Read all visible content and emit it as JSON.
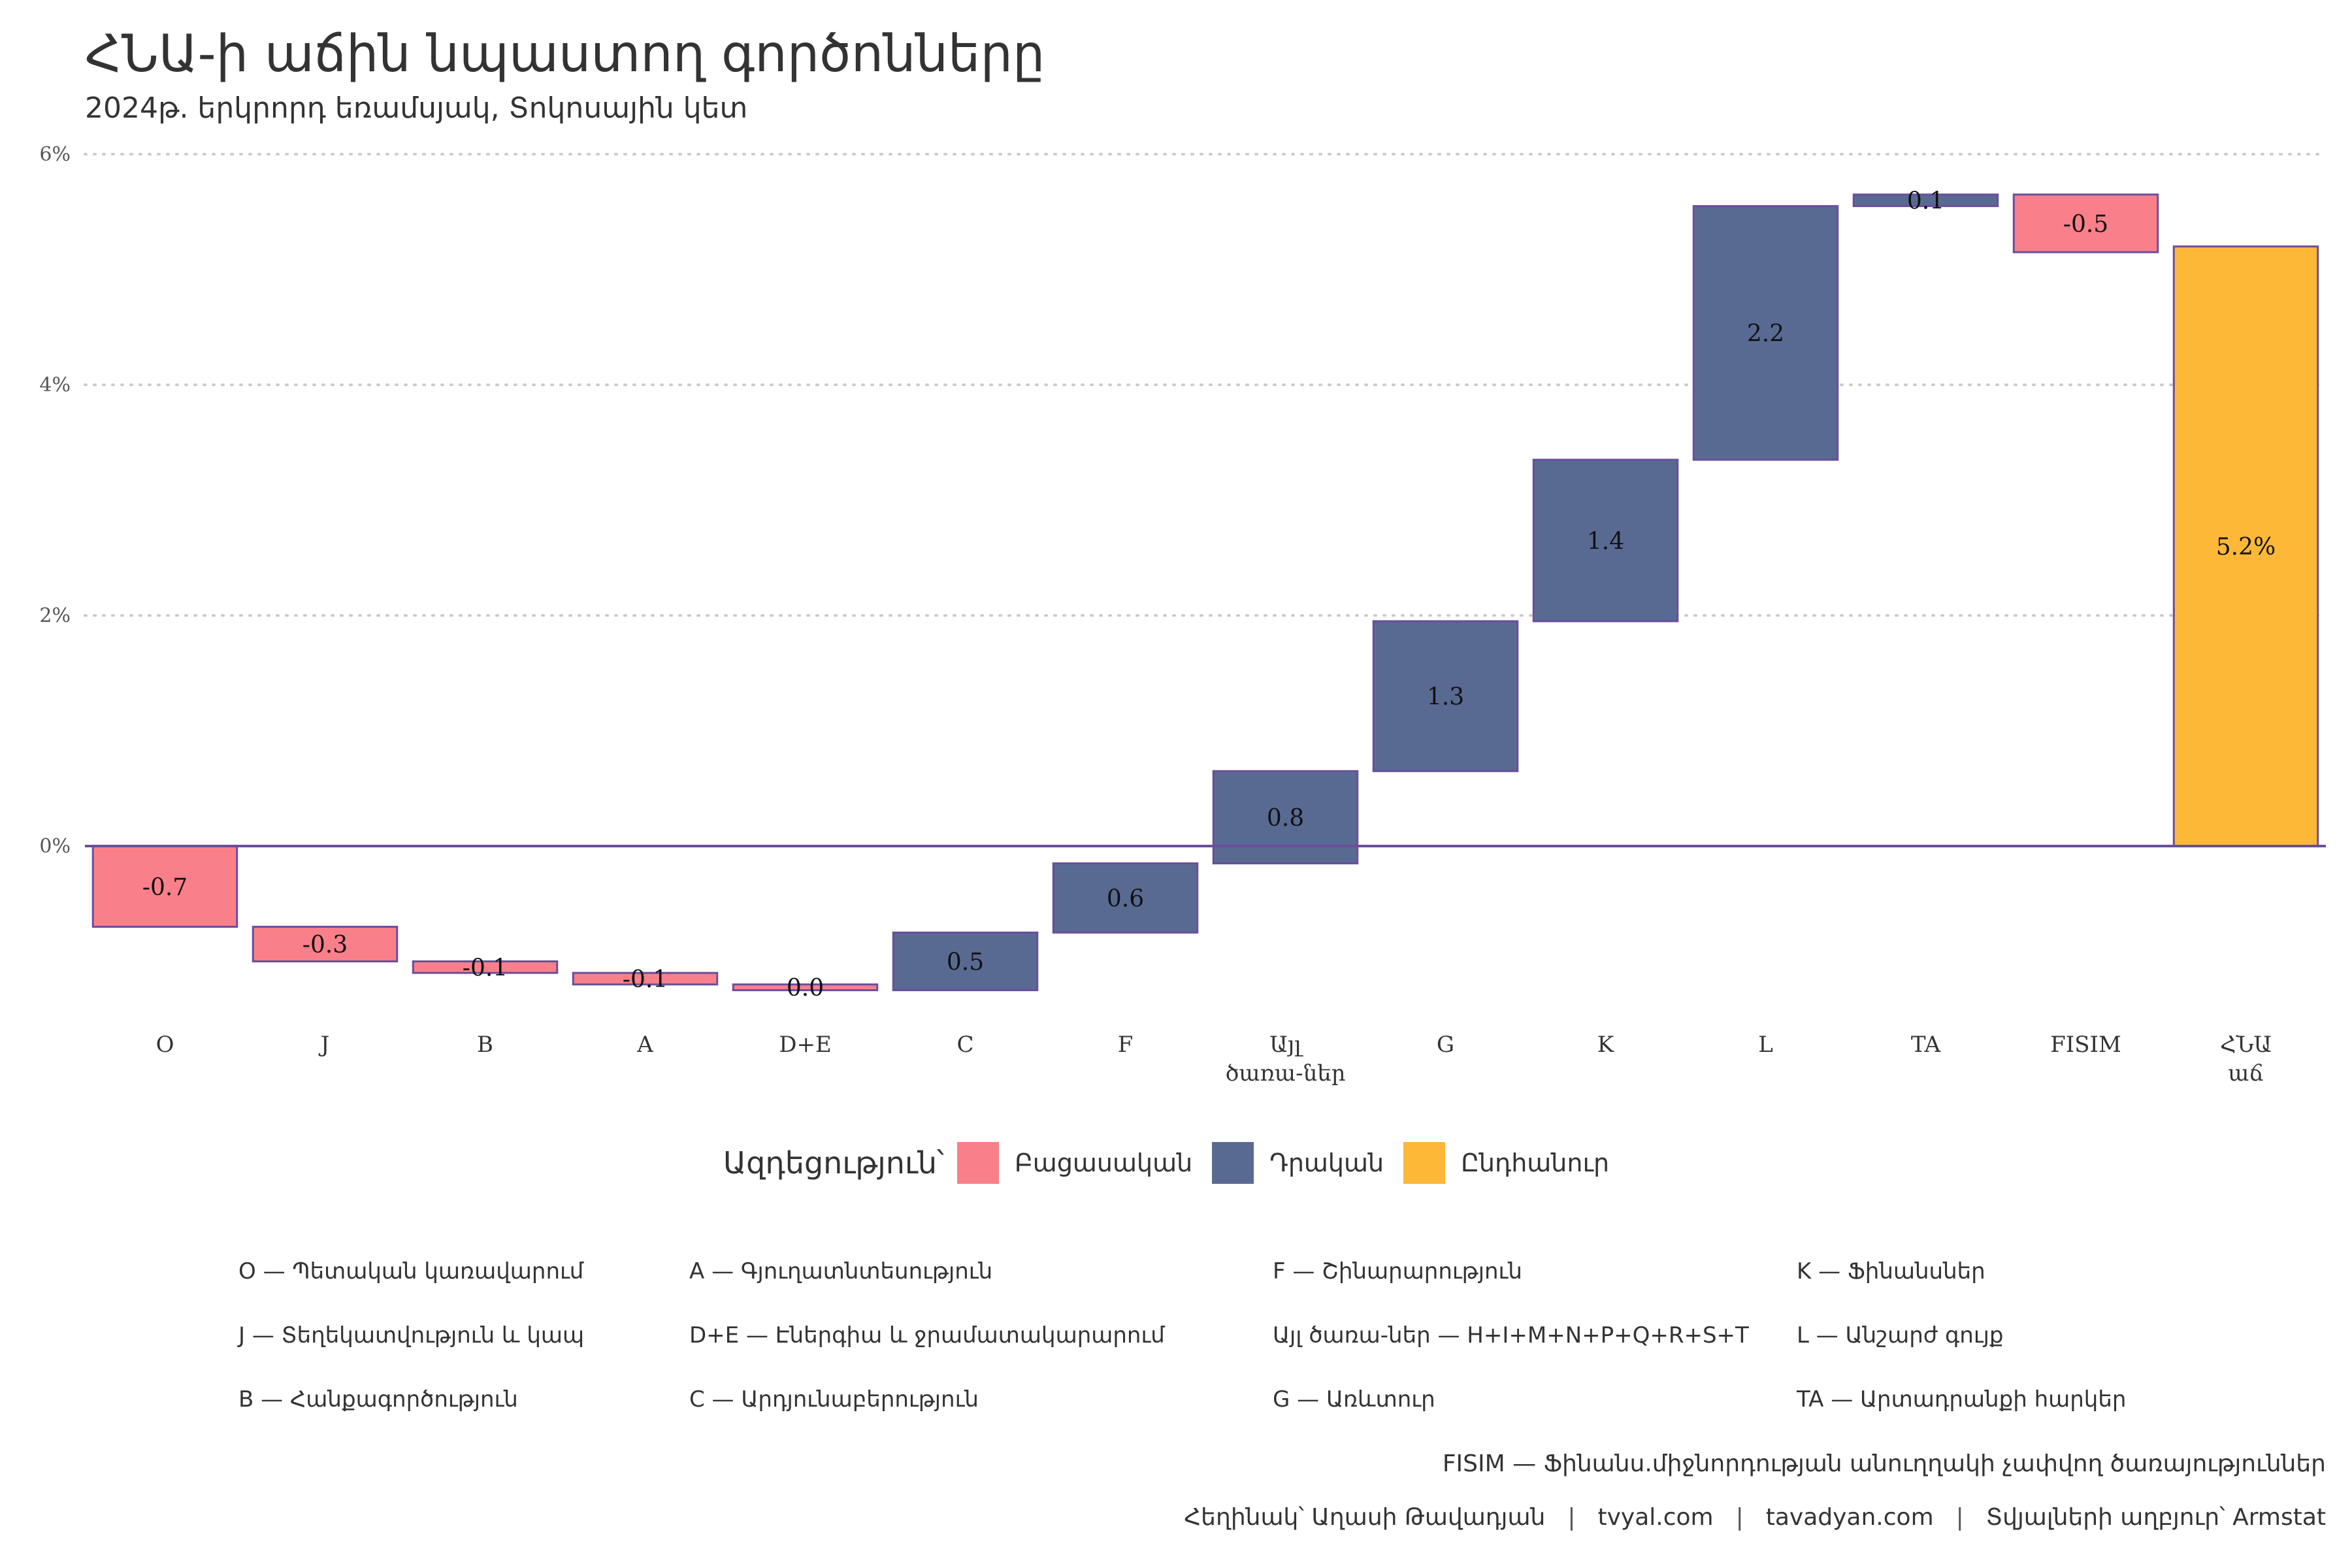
{
  "title": "ՀՆԱ-ի աճին նպաստող գործոնները",
  "subtitle": "2024թ. երկրորդ եռամսյակ, Տոկոսային կետ",
  "colors": {
    "negative": "#F9808A",
    "positive": "#596A92",
    "total": "#FDB838",
    "line": "#6B4E9B",
    "grid": "#cccccc"
  },
  "legend": {
    "title": "Ազդեցություն՝",
    "items": [
      {
        "label": "Բացասական",
        "color": "#F9808A"
      },
      {
        "label": "Դրական",
        "color": "#596A92"
      },
      {
        "label": "Ընդհանուր",
        "color": "#FDB838"
      }
    ]
  },
  "chart_data": {
    "type": "bar",
    "subtype": "waterfall",
    "categories": [
      "O",
      "J",
      "B",
      "A",
      "D+E",
      "C",
      "F",
      "Այլ\nծառա-ներ",
      "G",
      "K",
      "L",
      "TA",
      "FISIM",
      "ՀՆԱ\nաճ"
    ],
    "values": [
      -0.7,
      -0.3,
      -0.1,
      -0.1,
      -0.05,
      0.5,
      0.6,
      0.8,
      1.3,
      1.4,
      2.2,
      0.1,
      -0.5,
      5.2
    ],
    "value_labels": [
      "-0.7",
      "-0.3",
      "-0.1",
      "-0.1",
      "0.0",
      "0.5",
      "0.6",
      "0.8",
      "1.3",
      "1.4",
      "2.2",
      "0.1",
      "-0.5",
      "5.2%"
    ],
    "kinds": [
      "negative",
      "negative",
      "negative",
      "negative",
      "negative",
      "positive",
      "positive",
      "positive",
      "positive",
      "positive",
      "positive",
      "positive",
      "negative",
      "total"
    ],
    "ylim": [
      -1.5,
      6
    ],
    "yticks": [
      0,
      2,
      4,
      6
    ],
    "ytick_labels": [
      "0%",
      "2%",
      "4%",
      "6%"
    ],
    "grid": "horizontal dotted",
    "legend_position": "bottom"
  },
  "abbreviations": [
    [
      "O — Պետական կառավարում",
      "J — Տեղեկատվություն և կապ",
      "B — Հանքագործություն"
    ],
    [
      "A — Գյուղատնտեսություն",
      "D+E — Էներգիա և ջրամատակարարում",
      "C — Արդյունաբերություն"
    ],
    [
      "F — Շինարարություն",
      "Այլ ծառա-ներ — H+I+M+N+P+Q+R+S+T",
      "G — Առևտուր"
    ],
    [
      "K — Ֆինանսներ",
      "L — Անշարժ գույք",
      "TA — Արտադրանքի հարկեր"
    ]
  ],
  "fisim_note": "FISIM — Ֆինանս.միջնորդության անուղղակի չափվող ծառայություններ",
  "caption": {
    "author": "Հեղինակ՝ Աղասի Թավադյան",
    "site1": "tvyal.com",
    "site2": "tavadyan.com",
    "source": "Տվյալների աղբյուր՝ Armstat",
    "separator": "|"
  }
}
